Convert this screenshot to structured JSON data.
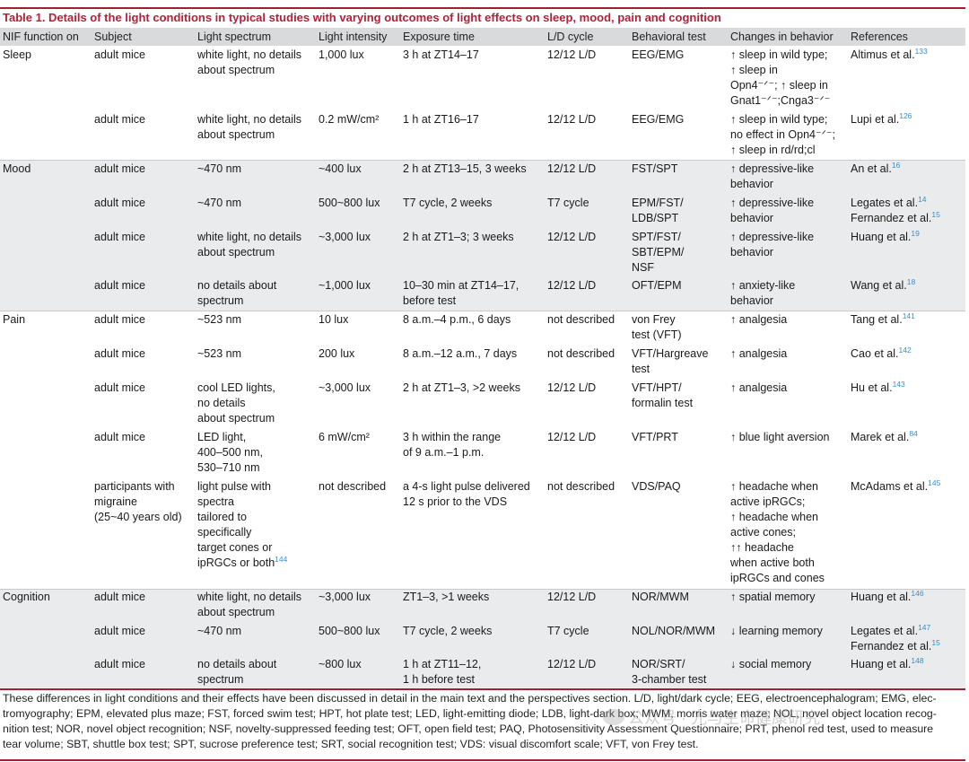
{
  "table_title": "Table 1.  Details of the light conditions in typical studies with varying outcomes of light effects on sleep, mood, pain and cognition",
  "headers": [
    "NIF function on",
    "Subject",
    "Light spectrum",
    "Light intensity",
    "Exposure time",
    "L/D cycle",
    "Behavioral test",
    "Changes in behavior",
    "References"
  ],
  "groups": [
    {
      "function": "Sleep",
      "rows": [
        {
          "subject": [
            "adult mice"
          ],
          "spectrum": [
            "white light, no details",
            "about spectrum"
          ],
          "intensity": [
            "1,000 lux"
          ],
          "exposure": [
            "3 h at ZT14–17"
          ],
          "ld": [
            "12/12 L/D"
          ],
          "test": [
            "EEG/EMG"
          ],
          "changes": [
            "↑ sleep in wild type;",
            "↑ sleep in",
            "Opn4⁻ᐟ⁻; ↑ sleep in",
            "Gnat1⁻ᐟ⁻;Cnga3⁻ᐟ⁻"
          ],
          "ref": "Altimus et al.",
          "ref_num": "133"
        },
        {
          "subject": [
            "adult mice"
          ],
          "spectrum": [
            "white light, no details",
            "about spectrum"
          ],
          "intensity": [
            "0.2 mW/cm²"
          ],
          "exposure": [
            "1 h at ZT16–17"
          ],
          "ld": [
            "12/12 L/D"
          ],
          "test": [
            "EEG/EMG"
          ],
          "changes": [
            "↑ sleep in wild type;",
            "no effect in Opn4⁻ᐟ⁻;",
            "↑ sleep in rd/rd;cl"
          ],
          "ref": "Lupi et al.",
          "ref_num": "126"
        }
      ]
    },
    {
      "function": "Mood",
      "rows": [
        {
          "subject": [
            "adult mice"
          ],
          "spectrum": [
            "~470 nm"
          ],
          "intensity": [
            "~400 lux"
          ],
          "exposure": [
            "2 h at ZT13–15, 3 weeks"
          ],
          "ld": [
            "12/12 L/D"
          ],
          "test": [
            "FST/SPT"
          ],
          "changes": [
            "↑ depressive-like",
            "behavior"
          ],
          "ref": "An et al.",
          "ref_num": "16"
        },
        {
          "subject": [
            "adult mice"
          ],
          "spectrum": [
            "~470 nm"
          ],
          "intensity": [
            "500~800 lux"
          ],
          "exposure": [
            "T7 cycle, 2 weeks"
          ],
          "ld": [
            "T7 cycle"
          ],
          "test": [
            "EPM/FST/",
            "LDB/SPT"
          ],
          "changes": [
            "↑ depressive-like",
            "behavior"
          ],
          "ref": "Legates et al.",
          "ref_num": "14",
          "ref2": "Fernandez et al.",
          "ref2_num": "15"
        },
        {
          "subject": [
            "adult mice"
          ],
          "spectrum": [
            "white light, no details",
            "about spectrum"
          ],
          "intensity": [
            "~3,000 lux"
          ],
          "exposure": [
            "2 h at ZT1–3; 3 weeks"
          ],
          "ld": [
            "12/12 L/D"
          ],
          "test": [
            "SPT/FST/",
            "SBT/EPM/",
            "NSF"
          ],
          "changes": [
            "↑ depressive-like",
            "behavior"
          ],
          "ref": "Huang et al.",
          "ref_num": "19"
        },
        {
          "subject": [
            "adult mice"
          ],
          "spectrum": [
            "no details about",
            "spectrum"
          ],
          "intensity": [
            "~1,000 lux"
          ],
          "exposure": [
            "10–30 min at ZT14–17,",
            "before test"
          ],
          "ld": [
            "12/12 L/D"
          ],
          "test": [
            "OFT/EPM"
          ],
          "changes": [
            "↑ anxiety-like",
            "behavior"
          ],
          "ref": "Wang et al.",
          "ref_num": "18"
        }
      ]
    },
    {
      "function": "Pain",
      "rows": [
        {
          "subject": [
            "adult mice"
          ],
          "spectrum": [
            "~523 nm"
          ],
          "intensity": [
            "10 lux"
          ],
          "exposure": [
            "8 a.m.–4 p.m., 6 days"
          ],
          "ld": [
            "not described"
          ],
          "test": [
            "von Frey",
            "test (VFT)"
          ],
          "changes": [
            "↑ analgesia"
          ],
          "ref": "Tang et al.",
          "ref_num": "141"
        },
        {
          "subject": [
            "adult mice"
          ],
          "spectrum": [
            "~523 nm"
          ],
          "intensity": [
            "200 lux"
          ],
          "exposure": [
            "8 a.m.–12 a.m., 7 days"
          ],
          "ld": [
            "not described"
          ],
          "test": [
            "VFT/Hargreave",
            "test"
          ],
          "changes": [
            "↑ analgesia"
          ],
          "ref": "Cao et al.",
          "ref_num": "142"
        },
        {
          "subject": [
            "adult mice"
          ],
          "spectrum": [
            "cool LED lights,",
            "no details",
            "about spectrum"
          ],
          "intensity": [
            "~3,000 lux"
          ],
          "exposure": [
            "2 h at ZT1–3, >2 weeks"
          ],
          "ld": [
            "12/12 L/D"
          ],
          "test": [
            "VFT/HPT/",
            "formalin test"
          ],
          "changes": [
            "↑ analgesia"
          ],
          "ref": "Hu et al.",
          "ref_num": "143"
        },
        {
          "subject": [
            "adult mice"
          ],
          "spectrum": [
            "LED light,",
            "400–500 nm,",
            "530–710 nm"
          ],
          "intensity": [
            "6 mW/cm²"
          ],
          "exposure": [
            "3 h within the range",
            "of 9 a.m.–1 p.m."
          ],
          "ld": [
            "12/12 L/D"
          ],
          "test": [
            "VFT/PRT"
          ],
          "changes": [
            "↑ blue light aversion"
          ],
          "ref": "Marek et al.",
          "ref_num": "84"
        },
        {
          "subject": [
            "participants with",
            "migraine",
            "(25~40 years old)"
          ],
          "spectrum": [
            "light pulse with",
            "spectra",
            "tailored to",
            "specifically",
            "target cones or",
            "ipRGCs or both"
          ],
          "spectrum_ref": "144",
          "intensity": [
            "not described"
          ],
          "exposure": [
            "a 4-s light pulse delivered",
            "12 s prior to the VDS"
          ],
          "ld": [
            "not described"
          ],
          "test": [
            "VDS/PAQ"
          ],
          "changes": [
            "↑ headache when",
            "active ipRGCs;",
            "↑ headache when",
            "active cones;",
            "↑↑ headache",
            "when active both",
            "ipRGCs and cones"
          ],
          "ref": "McAdams et al.",
          "ref_num": "145"
        }
      ]
    },
    {
      "function": "Cognition",
      "rows": [
        {
          "subject": [
            "adult mice"
          ],
          "spectrum": [
            "white light, no details",
            "about spectrum"
          ],
          "intensity": [
            "~3,000 lux"
          ],
          "exposure": [
            "ZT1–3, >1 weeks"
          ],
          "ld": [
            "12/12 L/D"
          ],
          "test": [
            "NOR/MWM"
          ],
          "changes": [
            "↑ spatial memory"
          ],
          "ref": "Huang et al.",
          "ref_num": "146"
        },
        {
          "subject": [
            "adult mice"
          ],
          "spectrum": [
            "~470 nm"
          ],
          "intensity": [
            "500~800 lux"
          ],
          "exposure": [
            "T7 cycle, 2 weeks"
          ],
          "ld": [
            "T7 cycle"
          ],
          "test": [
            "NOL/NOR/MWM"
          ],
          "changes": [
            "↓ learning memory"
          ],
          "ref": "Legates et al.",
          "ref_num": "147",
          "ref2": "Fernandez et al.",
          "ref2_num": "15"
        },
        {
          "subject": [
            "adult mice"
          ],
          "spectrum": [
            "no details about",
            "spectrum"
          ],
          "intensity": [
            "~800 lux"
          ],
          "exposure": [
            "1 h at ZT11–12,",
            "1 h before test"
          ],
          "ld": [
            "12/12 L/D"
          ],
          "test": [
            "NOR/SRT/",
            "3-chamber test"
          ],
          "changes": [
            "↓ social memory"
          ],
          "ref": "Huang et al.",
          "ref_num": "148"
        }
      ]
    }
  ],
  "footnote": [
    "These differences in light conditions and their effects have been discussed in detail in the main text and the perspectives section. L/D, light/dark cycle; EEG, electroencephalogram; EMG, elec-",
    "tromyography; EPM, elevated plus maze; FST, forced swim test; HPT, hot plate test; LED, light-emitting diode; LDB, light-dark box; MWM, morris water maze; NOL, novel object location recog-",
    "nition test; NOR, novel object recognition; NSF, novelty-suppressed feeding test; OFT, open field test; PAQ, Photosensitivity Assessment Questionnaire; PRT, phenol red test, used to measure",
    "tear volume; SBT, shuttle box test; SPT, sucrose preference test; SRT, social recognition test; VDS: visual discomfort scale; VFT, von Frey test."
  ],
  "watermark": "公众号 · 光与生命健康研究"
}
